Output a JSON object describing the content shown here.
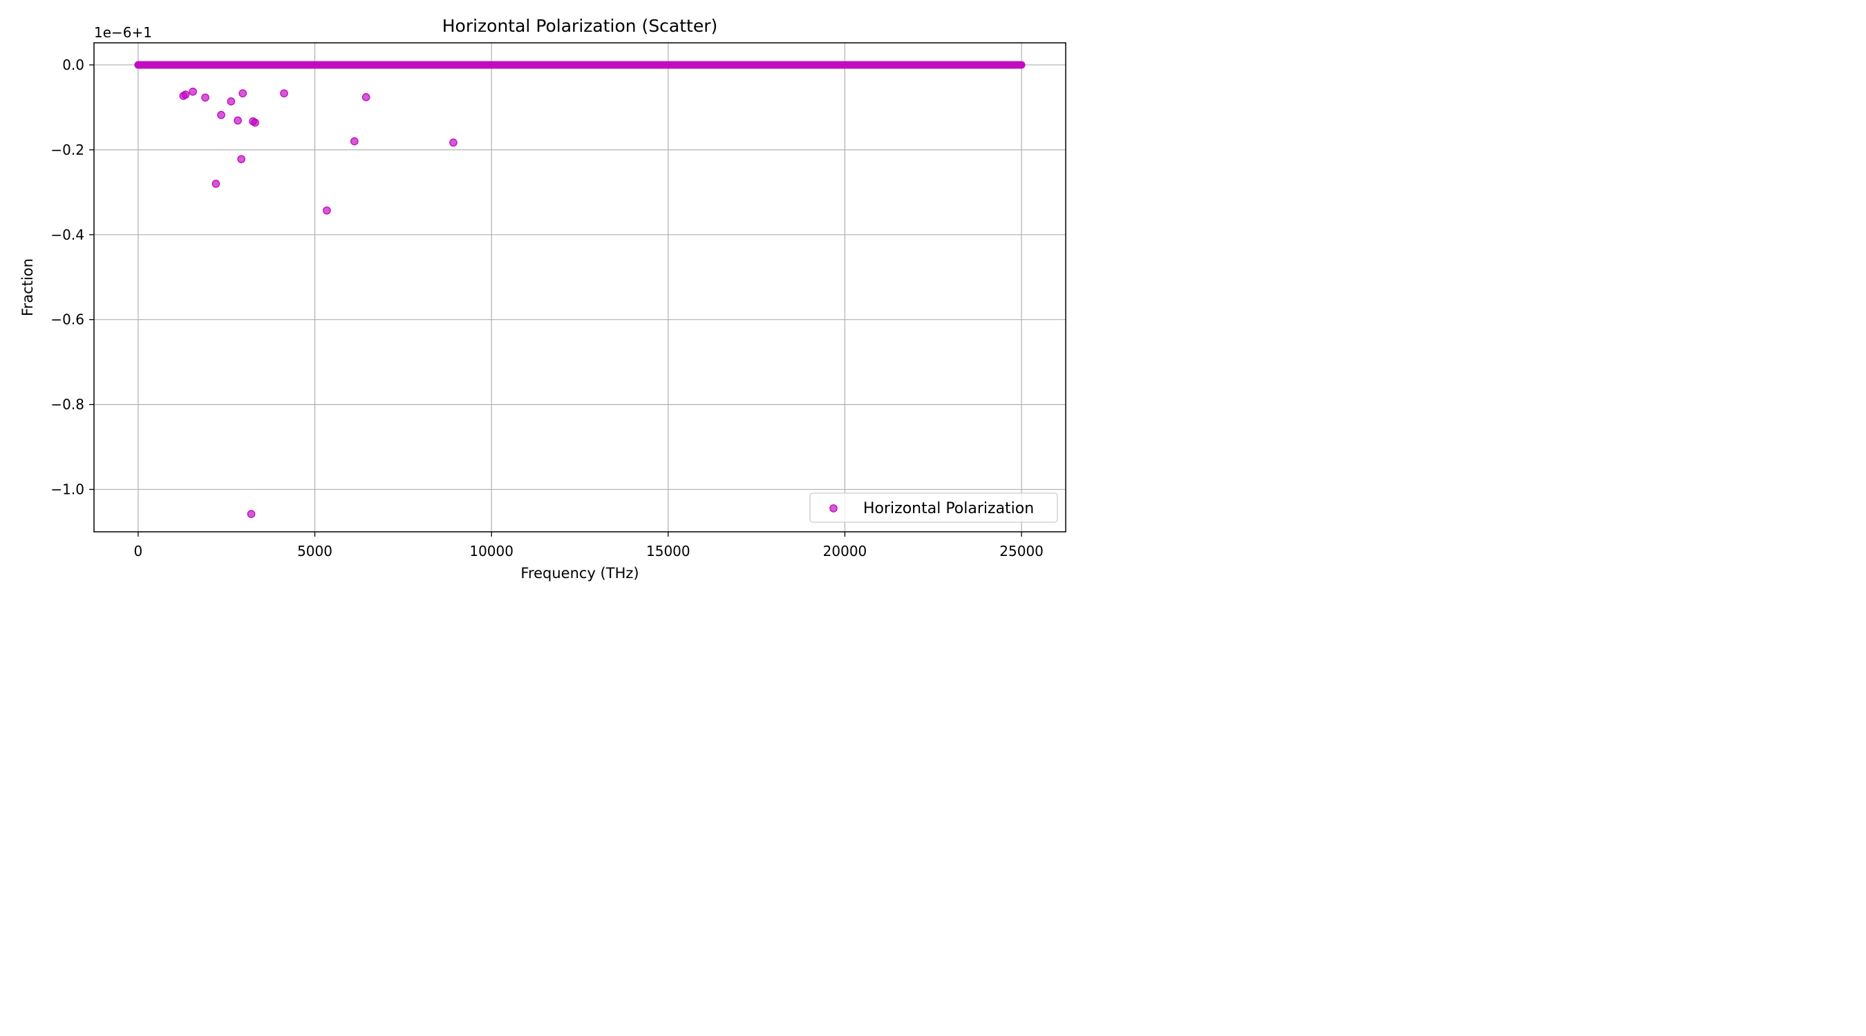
{
  "chart_data": {
    "type": "scatter",
    "title": "Horizontal Polarization (Scatter)",
    "xlabel": "Frequency (THz)",
    "ylabel": "Fraction",
    "offset_label": "1e−6+1",
    "xlim": [
      -1250,
      26250
    ],
    "ylim": [
      -1.1,
      0.052
    ],
    "x_ticks": [
      0,
      5000,
      10000,
      15000,
      20000,
      25000
    ],
    "x_tick_labels": [
      "0",
      "5000",
      "10000",
      "15000",
      "20000",
      "25000"
    ],
    "y_ticks": [
      0.0,
      -0.2,
      -0.4,
      -0.6,
      -0.8,
      -1.0
    ],
    "y_tick_labels": [
      "0.0",
      "−0.2",
      "−0.4",
      "−0.6",
      "−0.8",
      "−1.0"
    ],
    "grid": true,
    "legend_position": "lower-right",
    "marker_color": "#bf00bf",
    "series": [
      {
        "name": "Horizontal Polarization",
        "dense_baseline": {
          "x_start": 0,
          "x_end": 25000,
          "y": 0.0
        },
        "points": [
          [
            1280,
            -0.073
          ],
          [
            1340,
            -0.07
          ],
          [
            1550,
            -0.063
          ],
          [
            1900,
            -0.077
          ],
          [
            2200,
            -0.28
          ],
          [
            2350,
            -0.118
          ],
          [
            2630,
            -0.086
          ],
          [
            2820,
            -0.131
          ],
          [
            2920,
            -0.222
          ],
          [
            2960,
            -0.067
          ],
          [
            3200,
            -1.058
          ],
          [
            3250,
            -0.133
          ],
          [
            3310,
            -0.136
          ],
          [
            4130,
            -0.067
          ],
          [
            5340,
            -0.343
          ],
          [
            6120,
            -0.18
          ],
          [
            6450,
            -0.076
          ],
          [
            8920,
            -0.183
          ]
        ]
      }
    ]
  }
}
